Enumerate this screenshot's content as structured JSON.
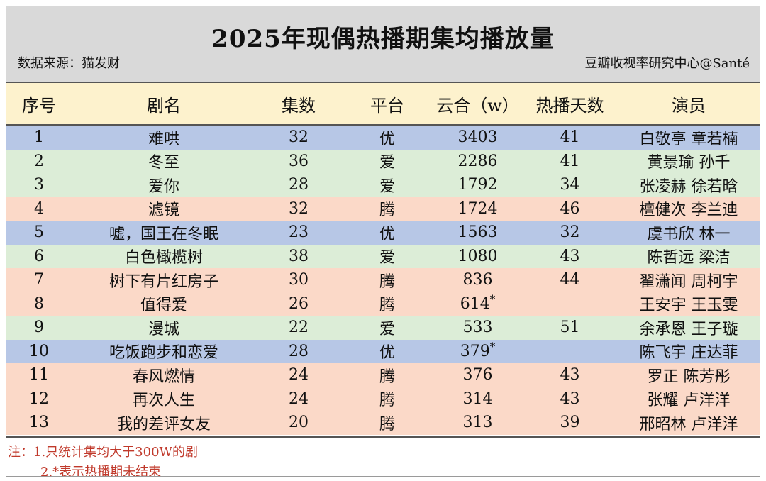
{
  "title": "2025年现偶热播期集均播放量",
  "source": "数据来源：猫发财",
  "credit": "豆瓣收视率研究中心@Santé",
  "headers": {
    "idx": "序号",
    "name": "剧名",
    "episodes": "集数",
    "platform": "平台",
    "cloud": "云合（w）",
    "days": "热播天数",
    "cast": "演员"
  },
  "rows": [
    {
      "idx": "1",
      "name": "难哄",
      "episodes": "32",
      "platform": "优",
      "cloud": "3403",
      "star": "",
      "days": "41",
      "cast": "白敬亭  章若楠",
      "color": "blue"
    },
    {
      "idx": "2",
      "name": "冬至",
      "episodes": "36",
      "platform": "爱",
      "cloud": "2286",
      "star": "",
      "days": "41",
      "cast": "黄景瑜  孙千",
      "color": "green"
    },
    {
      "idx": "3",
      "name": "爱你",
      "episodes": "28",
      "platform": "爱",
      "cloud": "1792",
      "star": "",
      "days": "34",
      "cast": "张凌赫  徐若晗",
      "color": "green"
    },
    {
      "idx": "4",
      "name": "滤镜",
      "episodes": "32",
      "platform": "腾",
      "cloud": "1724",
      "star": "",
      "days": "46",
      "cast": "檀健次  李兰迪",
      "color": "peach"
    },
    {
      "idx": "5",
      "name": "嘘，国王在冬眠",
      "episodes": "23",
      "platform": "优",
      "cloud": "1563",
      "star": "",
      "days": "32",
      "cast": "虞书欣  林一",
      "color": "blue"
    },
    {
      "idx": "6",
      "name": "白色橄榄树",
      "episodes": "38",
      "platform": "爱",
      "cloud": "1080",
      "star": "",
      "days": "43",
      "cast": "陈哲远  梁洁",
      "color": "green"
    },
    {
      "idx": "7",
      "name": "树下有片红房子",
      "episodes": "30",
      "platform": "腾",
      "cloud": "836",
      "star": "",
      "days": "44",
      "cast": "翟潇闻  周柯宇",
      "color": "peach"
    },
    {
      "idx": "8",
      "name": "值得爱",
      "episodes": "26",
      "platform": "腾",
      "cloud": "614",
      "star": "*",
      "days": "",
      "cast": "王安宇  王玉雯",
      "color": "peach"
    },
    {
      "idx": "9",
      "name": "漫城",
      "episodes": "22",
      "platform": "爱",
      "cloud": "533",
      "star": "",
      "days": "51",
      "cast": "余承恩  王子璇",
      "color": "green"
    },
    {
      "idx": "10",
      "name": "吃饭跑步和恋爱",
      "episodes": "28",
      "platform": "优",
      "cloud": "379",
      "star": "*",
      "days": "",
      "cast": "陈飞宇  庄达菲",
      "color": "blue"
    },
    {
      "idx": "11",
      "name": "春风燃情",
      "episodes": "24",
      "platform": "腾",
      "cloud": "376",
      "star": "",
      "days": "43",
      "cast": "罗正  陈芳彤",
      "color": "peach"
    },
    {
      "idx": "12",
      "name": "再次人生",
      "episodes": "24",
      "platform": "腾",
      "cloud": "314",
      "star": "",
      "days": "43",
      "cast": "张耀  卢洋洋",
      "color": "peach"
    },
    {
      "idx": "13",
      "name": "我的差评女友",
      "episodes": "20",
      "platform": "腾",
      "cloud": "313",
      "star": "",
      "days": "39",
      "cast": "邢昭林  卢洋洋",
      "color": "peach"
    }
  ],
  "notes": {
    "line1": "注：1.只统计集均大于300W的剧",
    "line2": "2.*表示热播期未结束"
  },
  "colors": {
    "header_bg": "#fdf2cd",
    "title_bg": "#d9d9d9",
    "blue": "#b7c7e6",
    "green": "#dcedd7",
    "peach": "#fbd9c8",
    "note_text": "#c0392b"
  }
}
